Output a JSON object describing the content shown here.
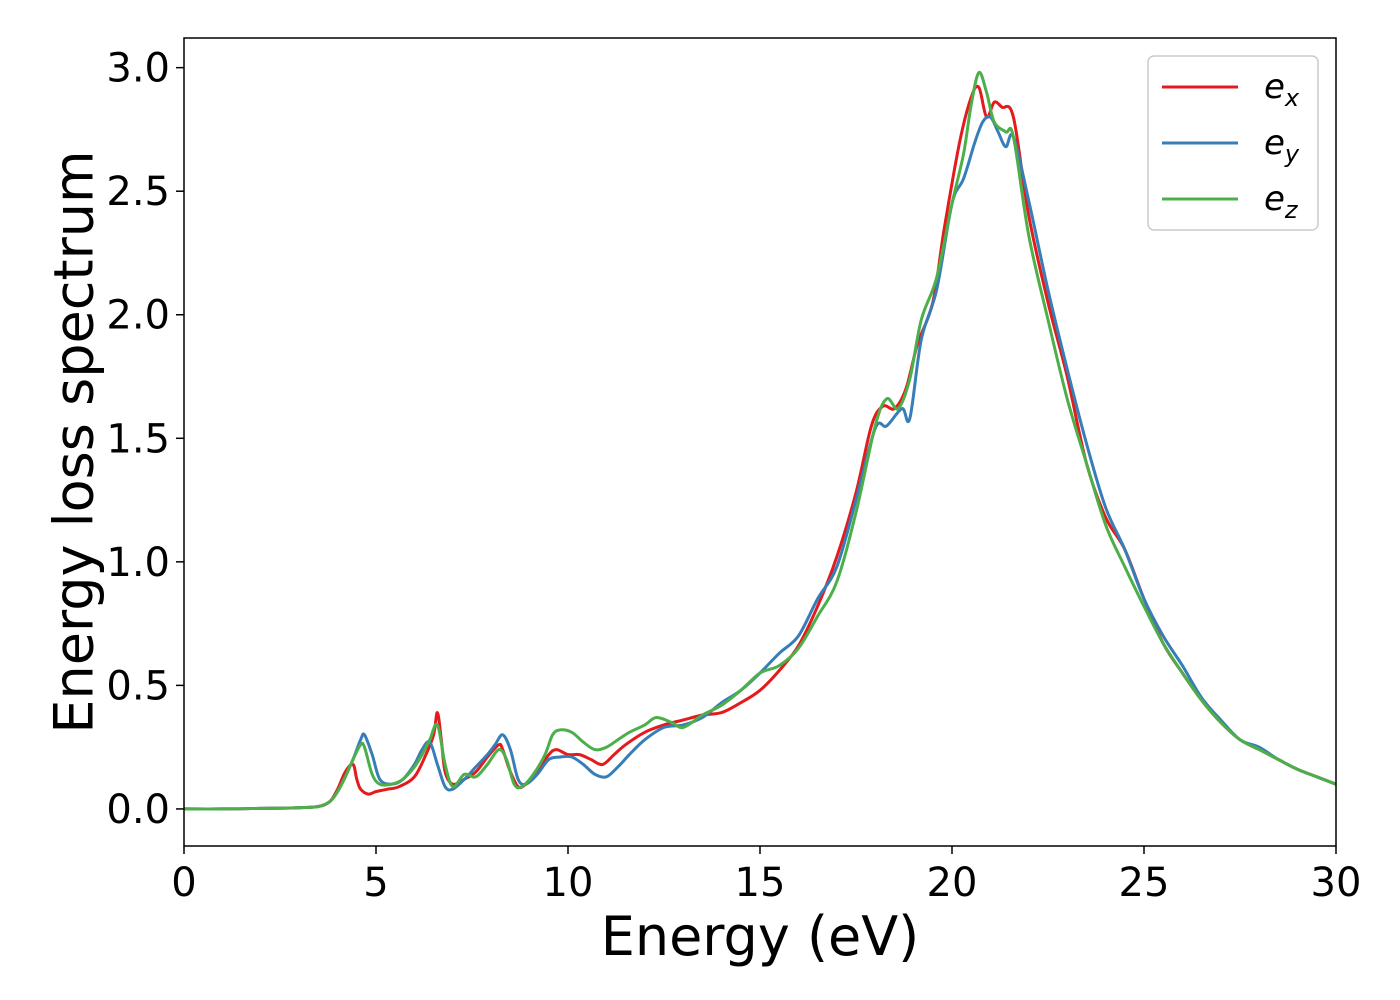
{
  "chart_data": {
    "type": "line",
    "title": "",
    "xlabel": "Energy (eV)",
    "ylabel": "Energy loss spectrum",
    "xlim": [
      0,
      30
    ],
    "ylim": [
      -0.15,
      3.12
    ],
    "xticks": [
      0,
      5,
      10,
      15,
      20,
      25,
      30
    ],
    "xtick_labels": [
      "0",
      "5",
      "10",
      "15",
      "20",
      "25",
      "30"
    ],
    "yticks": [
      0.0,
      0.5,
      1.0,
      1.5,
      2.0,
      2.5,
      3.0
    ],
    "ytick_labels": [
      "0.0",
      "0.5",
      "1.0",
      "1.5",
      "2.0",
      "2.5",
      "3.0"
    ],
    "grid": false,
    "legend_position": "top-right",
    "series": [
      {
        "name": "e",
        "subscript": "x",
        "color": "#e41a1c",
        "x": [
          0,
          1,
          2,
          3,
          3.5,
          3.8,
          4.0,
          4.2,
          4.4,
          4.5,
          4.6,
          4.8,
          5.0,
          5.3,
          5.6,
          6.0,
          6.3,
          6.5,
          6.6,
          6.7,
          6.8,
          7.0,
          7.3,
          7.6,
          7.9,
          8.2,
          8.3,
          8.5,
          8.7,
          8.9,
          9.2,
          9.5,
          9.7,
          10.0,
          10.3,
          10.6,
          10.9,
          11.2,
          11.5,
          12.0,
          12.5,
          13.0,
          13.5,
          14.0,
          14.5,
          15.0,
          15.5,
          16.0,
          16.5,
          17.0,
          17.5,
          17.9,
          18.2,
          18.5,
          18.8,
          19.1,
          19.5,
          19.8,
          20.2,
          20.5,
          20.7,
          20.9,
          21.1,
          21.3,
          21.6,
          22.0,
          22.5,
          23.0,
          23.5,
          24.0,
          24.5,
          25.0,
          25.5,
          26.0,
          26.5,
          27.0,
          27.5,
          28.0,
          28.5,
          29.0,
          29.5,
          30.0
        ],
        "y": [
          0,
          0,
          0.002,
          0.005,
          0.01,
          0.03,
          0.08,
          0.15,
          0.18,
          0.12,
          0.08,
          0.06,
          0.07,
          0.08,
          0.09,
          0.13,
          0.22,
          0.3,
          0.39,
          0.28,
          0.15,
          0.1,
          0.12,
          0.15,
          0.21,
          0.26,
          0.24,
          0.15,
          0.09,
          0.1,
          0.15,
          0.22,
          0.24,
          0.22,
          0.22,
          0.2,
          0.18,
          0.22,
          0.26,
          0.31,
          0.34,
          0.36,
          0.38,
          0.39,
          0.43,
          0.48,
          0.56,
          0.66,
          0.82,
          1.02,
          1.28,
          1.55,
          1.63,
          1.62,
          1.7,
          1.88,
          2.05,
          2.35,
          2.7,
          2.88,
          2.92,
          2.8,
          2.86,
          2.84,
          2.8,
          2.4,
          2.05,
          1.75,
          1.4,
          1.18,
          1.05,
          0.85,
          0.67,
          0.55,
          0.44,
          0.35,
          0.28,
          0.24,
          0.2,
          0.16,
          0.13,
          0.1
        ]
      },
      {
        "name": "e",
        "subscript": "y",
        "color": "#377eb8",
        "x": [
          0,
          1,
          2,
          3,
          3.5,
          3.8,
          4.0,
          4.2,
          4.4,
          4.6,
          4.7,
          4.9,
          5.1,
          5.4,
          5.7,
          6.0,
          6.2,
          6.4,
          6.6,
          6.8,
          7.0,
          7.3,
          7.6,
          7.9,
          8.1,
          8.3,
          8.5,
          8.7,
          8.9,
          9.2,
          9.5,
          9.8,
          10.1,
          10.4,
          10.7,
          11.0,
          11.3,
          11.6,
          12.0,
          12.5,
          13.0,
          13.5,
          14.0,
          14.5,
          15.0,
          15.5,
          16.0,
          16.5,
          17.0,
          17.5,
          18.0,
          18.3,
          18.7,
          18.9,
          19.2,
          19.6,
          20.0,
          20.3,
          20.6,
          20.8,
          21.0,
          21.2,
          21.4,
          21.6,
          22.0,
          22.5,
          23.0,
          23.5,
          24.0,
          24.5,
          25.0,
          25.5,
          26.0,
          26.5,
          27.0,
          27.5,
          28.0,
          28.5,
          29.0,
          29.5,
          30.0
        ],
        "y": [
          0,
          0,
          0.002,
          0.005,
          0.01,
          0.03,
          0.07,
          0.13,
          0.2,
          0.28,
          0.3,
          0.22,
          0.12,
          0.1,
          0.12,
          0.18,
          0.24,
          0.27,
          0.18,
          0.09,
          0.08,
          0.12,
          0.17,
          0.22,
          0.26,
          0.3,
          0.24,
          0.12,
          0.1,
          0.14,
          0.2,
          0.21,
          0.21,
          0.18,
          0.14,
          0.13,
          0.17,
          0.22,
          0.28,
          0.33,
          0.34,
          0.37,
          0.43,
          0.48,
          0.55,
          0.63,
          0.7,
          0.85,
          0.98,
          1.25,
          1.54,
          1.55,
          1.62,
          1.58,
          1.9,
          2.1,
          2.45,
          2.55,
          2.7,
          2.78,
          2.8,
          2.74,
          2.68,
          2.72,
          2.46,
          2.1,
          1.78,
          1.48,
          1.22,
          1.05,
          0.85,
          0.7,
          0.58,
          0.45,
          0.36,
          0.28,
          0.25,
          0.2,
          0.16,
          0.13,
          0.1
        ]
      },
      {
        "name": "e",
        "subscript": "z",
        "color": "#4daf4a",
        "x": [
          0,
          1,
          2,
          3,
          3.5,
          3.8,
          4.0,
          4.2,
          4.4,
          4.6,
          4.7,
          4.9,
          5.1,
          5.4,
          5.7,
          6.0,
          6.2,
          6.4,
          6.6,
          6.8,
          7.0,
          7.3,
          7.6,
          7.9,
          8.2,
          8.4,
          8.6,
          8.8,
          9.1,
          9.4,
          9.6,
          9.8,
          10.1,
          10.4,
          10.7,
          11.0,
          11.3,
          11.6,
          12.0,
          12.3,
          12.7,
          13.0,
          13.5,
          14.0,
          14.5,
          15.0,
          15.5,
          16.0,
          16.5,
          17.0,
          17.5,
          18.0,
          18.3,
          18.6,
          18.9,
          19.2,
          19.6,
          20.0,
          20.3,
          20.5,
          20.7,
          20.9,
          21.1,
          21.4,
          21.6,
          22.0,
          22.5,
          23.0,
          23.5,
          24.0,
          24.5,
          25.0,
          25.5,
          26.0,
          26.5,
          27.0,
          27.5,
          28.0,
          28.5,
          29.0,
          29.5,
          30.0
        ],
        "y": [
          0,
          0,
          0.002,
          0.005,
          0.01,
          0.03,
          0.07,
          0.13,
          0.2,
          0.26,
          0.25,
          0.14,
          0.1,
          0.1,
          0.12,
          0.17,
          0.22,
          0.28,
          0.34,
          0.18,
          0.09,
          0.14,
          0.13,
          0.18,
          0.24,
          0.2,
          0.1,
          0.09,
          0.14,
          0.22,
          0.3,
          0.32,
          0.31,
          0.27,
          0.24,
          0.25,
          0.28,
          0.31,
          0.34,
          0.37,
          0.35,
          0.33,
          0.38,
          0.42,
          0.48,
          0.55,
          0.58,
          0.65,
          0.78,
          0.92,
          1.2,
          1.55,
          1.66,
          1.62,
          1.74,
          1.98,
          2.15,
          2.45,
          2.65,
          2.85,
          2.98,
          2.9,
          2.78,
          2.74,
          2.72,
          2.32,
          1.98,
          1.66,
          1.4,
          1.15,
          0.98,
          0.82,
          0.67,
          0.55,
          0.44,
          0.35,
          0.28,
          0.24,
          0.2,
          0.16,
          0.13,
          0.1
        ]
      }
    ]
  }
}
